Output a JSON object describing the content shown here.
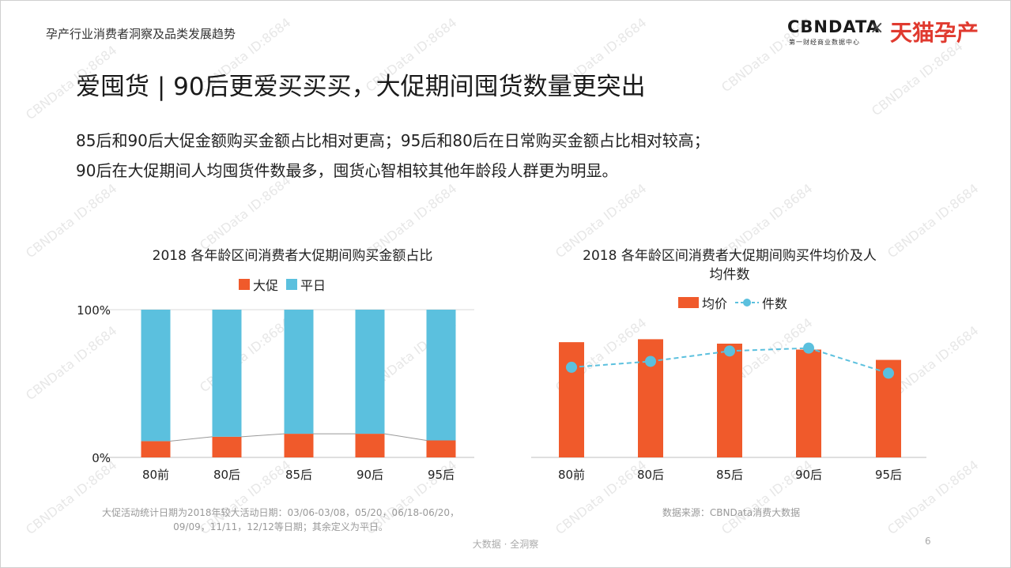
{
  "header": {
    "title": "孕产行业消费者洞察及品类发展趋势",
    "logo_cbn": "CBNDATA",
    "logo_cbn_sub": "第一财经商业数据中心",
    "logo_times": "×",
    "logo_tmall": "天猫孕产"
  },
  "main_title": "爱囤货 | 90后更爱买买买，大促期间囤货数量更突出",
  "desc": {
    "line1": "85后和90后大促金额购买金额占比相对更高；95后和80后在日常购买金额占比相对较高；",
    "line2": "90后在大促期间人均囤货件数最多，囤货心智相较其他年龄段人群更为明显。"
  },
  "watermark": "CBNData ID:8684",
  "colors": {
    "orange": "#f05a2b",
    "blue": "#5bc0de",
    "connector": "#999999"
  },
  "chart_data": [
    {
      "type": "bar",
      "stacked": true,
      "title": "2018 各年龄区间消费者大促期间购买金额占比",
      "categories": [
        "80前",
        "80后",
        "85后",
        "90后",
        "95后"
      ],
      "series": [
        {
          "name": "大促",
          "values": [
            11,
            14,
            16,
            16,
            11.5
          ]
        },
        {
          "name": "平日",
          "values": [
            89,
            86,
            84,
            84,
            88.5
          ]
        }
      ],
      "ylim": [
        0,
        100
      ],
      "yticks": [
        "0%",
        "100%"
      ],
      "legend": "top"
    },
    {
      "type": "bar",
      "title_line1": "2018 各年龄区间消费者大促期间购买件均价及人",
      "title_line2": "均件数",
      "categories": [
        "80前",
        "80后",
        "85后",
        "90后",
        "95后"
      ],
      "series": [
        {
          "name": "均价",
          "kind": "bar",
          "values": [
            78,
            80,
            77,
            73,
            66
          ]
        },
        {
          "name": "件数",
          "kind": "line",
          "values": [
            61,
            65,
            72,
            74,
            57
          ]
        }
      ],
      "ylim": [
        0,
        100
      ],
      "legend": "top"
    }
  ],
  "footnotes": {
    "left_line1": "大促活动统计日期为2018年较大活动日期：03/06-03/08，05/20，06/18-06/20，",
    "left_line2": "09/09，11/11，12/12等日期；其余定义为平日。",
    "right": "数据来源：CBNData消费大数据"
  },
  "footer": {
    "text": "大数据 · 全洞察",
    "page": "6"
  }
}
